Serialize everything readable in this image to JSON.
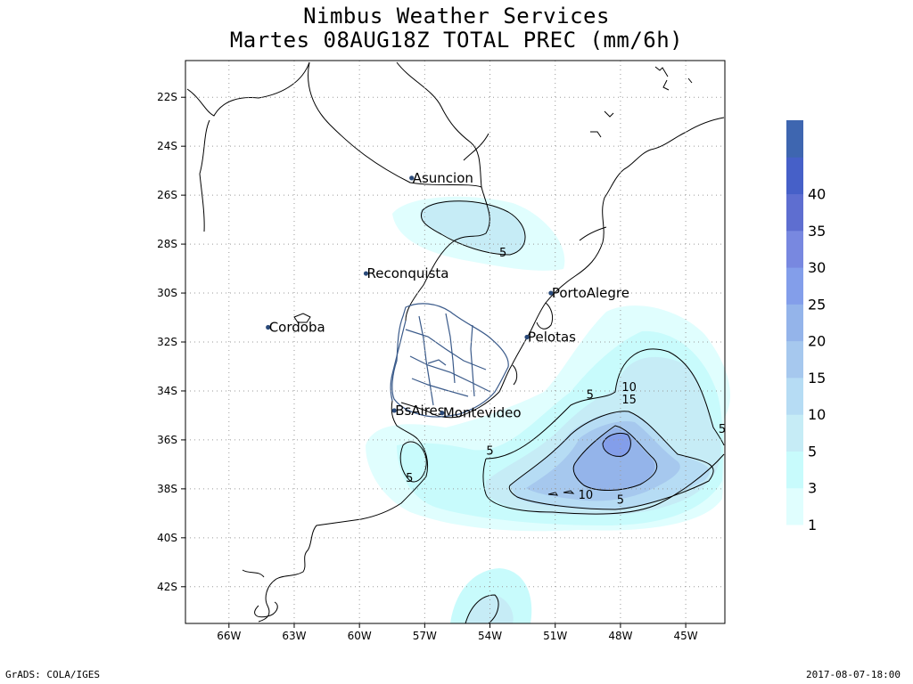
{
  "title": "Nimbus Weather Services",
  "subtitle": "Martes 08AUG18Z TOTAL PREC (mm/6h)",
  "footer_left": "GrADS: COLA/IGES",
  "footer_right": "2017-08-07-18:00",
  "axes": {
    "lon_ticks": [
      "66W",
      "63W",
      "60W",
      "57W",
      "54W",
      "51W",
      "48W",
      "45W"
    ],
    "lat_ticks": [
      "22S",
      "24S",
      "26S",
      "28S",
      "30S",
      "32S",
      "34S",
      "36S",
      "38S",
      "40S",
      "42S"
    ],
    "lon_range": [
      -68,
      -43.2
    ],
    "lat_range": [
      -43.5,
      -20.5
    ],
    "grid": "dotted"
  },
  "cities": [
    {
      "name": "Asuncion",
      "lon": -57.6,
      "lat": -25.3
    },
    {
      "name": "Reconquista",
      "lon": -59.7,
      "lat": -29.2
    },
    {
      "name": "PortoAlegre",
      "lon": -51.2,
      "lat": -30.0
    },
    {
      "name": "Cordoba",
      "lon": -64.2,
      "lat": -31.4
    },
    {
      "name": "Pelotas",
      "lon": -52.3,
      "lat": -31.8
    },
    {
      "name": "BsAires",
      "lon": -58.4,
      "lat": -34.8
    },
    {
      "name": "Montevideo",
      "lon": -56.2,
      "lat": -34.9
    }
  ],
  "contour_labels": [
    {
      "text": "5",
      "lon": -53.4,
      "lat": -28.4
    },
    {
      "text": "5",
      "lon": -49.4,
      "lat": -34.2
    },
    {
      "text": "10",
      "lon": -47.6,
      "lat": -33.9
    },
    {
      "text": "15",
      "lon": -47.6,
      "lat": -34.4
    },
    {
      "text": "5",
      "lon": -43.2,
      "lat": -35.6
    },
    {
      "text": "5",
      "lon": -54.0,
      "lat": -36.5
    },
    {
      "text": "5",
      "lon": -57.7,
      "lat": -37.6
    },
    {
      "text": "10",
      "lon": -49.6,
      "lat": -38.3
    },
    {
      "text": "5",
      "lon": -48.0,
      "lat": -38.5
    }
  ],
  "legend": {
    "levels": [
      "1",
      "3",
      "5",
      "10",
      "15",
      "20",
      "25",
      "30",
      "35",
      "40"
    ],
    "colors": [
      "#e0fefe",
      "#c8fbfc",
      "#c6ecf6",
      "#b6dcf4",
      "#a6c8ee",
      "#94b4ea",
      "#839eea",
      "#7888e0",
      "#5e6ed0",
      "#4660c8",
      "#3e66b0"
    ]
  },
  "colors": {
    "coast": "#000000",
    "rivers": "#3a5a8a",
    "city_marker": "#2a4a7a"
  }
}
